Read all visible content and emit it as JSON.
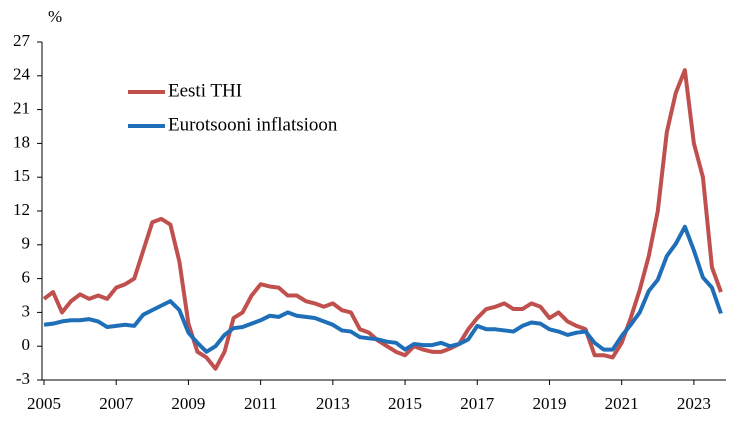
{
  "chart_data": {
    "type": "line",
    "y_unit": "%",
    "x": [
      2005,
      2005.25,
      2005.5,
      2005.75,
      2006,
      2006.25,
      2006.5,
      2006.75,
      2007,
      2007.25,
      2007.5,
      2007.75,
      2008,
      2008.25,
      2008.5,
      2008.75,
      2009,
      2009.25,
      2009.5,
      2009.75,
      2010,
      2010.25,
      2010.5,
      2010.75,
      2011,
      2011.25,
      2011.5,
      2011.75,
      2012,
      2012.25,
      2012.5,
      2012.75,
      2013,
      2013.25,
      2013.5,
      2013.75,
      2014,
      2014.25,
      2014.5,
      2014.75,
      2015,
      2015.25,
      2015.5,
      2015.75,
      2016,
      2016.25,
      2016.5,
      2016.75,
      2017,
      2017.25,
      2017.5,
      2017.75,
      2018,
      2018.25,
      2018.5,
      2018.75,
      2019,
      2019.25,
      2019.5,
      2019.75,
      2020,
      2020.25,
      2020.5,
      2020.75,
      2021,
      2021.25,
      2021.5,
      2021.75,
      2022,
      2022.25,
      2022.5,
      2022.75,
      2023,
      2023.25,
      2023.5,
      2023.75
    ],
    "series": [
      {
        "name": "Eesti THI",
        "color": "#c0504d",
        "values": [
          4.2,
          4.8,
          3.0,
          4.0,
          4.6,
          4.2,
          4.5,
          4.2,
          5.2,
          5.5,
          6.0,
          8.5,
          11.0,
          11.3,
          10.8,
          7.5,
          2.0,
          -0.5,
          -1.0,
          -2.0,
          -0.5,
          2.5,
          3.0,
          4.5,
          5.5,
          5.3,
          5.2,
          4.5,
          4.5,
          4.0,
          3.8,
          3.5,
          3.8,
          3.2,
          3.0,
          1.5,
          1.2,
          0.5,
          0,
          -0.5,
          -0.8,
          0,
          -0.3,
          -0.5,
          -0.5,
          -0.2,
          0.2,
          1.5,
          2.5,
          3.3,
          3.5,
          3.8,
          3.3,
          3.3,
          3.8,
          3.5,
          2.5,
          3.0,
          2.2,
          1.8,
          1.5,
          -0.8,
          -0.8,
          -1.0,
          0.3,
          2.5,
          5.0,
          8.0,
          12.0,
          19.0,
          22.5,
          24.5,
          18.0,
          15.0,
          7.0,
          4.8
        ]
      },
      {
        "name": "Eurotsooni inflatsioon",
        "color": "#1f6fb8",
        "values": [
          1.9,
          2.0,
          2.2,
          2.3,
          2.3,
          2.4,
          2.2,
          1.7,
          1.8,
          1.9,
          1.8,
          2.8,
          3.2,
          3.6,
          4.0,
          3.2,
          1.2,
          0.3,
          -0.5,
          0,
          1.0,
          1.6,
          1.7,
          2.0,
          2.3,
          2.7,
          2.6,
          3.0,
          2.7,
          2.6,
          2.5,
          2.2,
          1.9,
          1.4,
          1.3,
          0.8,
          0.7,
          0.6,
          0.4,
          0.3,
          -0.3,
          0.2,
          0.1,
          0.1,
          0.3,
          0,
          0.2,
          0.6,
          1.8,
          1.5,
          1.5,
          1.4,
          1.3,
          1.8,
          2.1,
          2.0,
          1.5,
          1.3,
          1.0,
          1.2,
          1.3,
          0.3,
          -0.3,
          -0.3,
          0.9,
          1.9,
          3.0,
          4.9,
          5.9,
          8.0,
          9.1,
          10.6,
          8.5,
          6.1,
          5.2,
          2.9
        ]
      }
    ],
    "xlim": [
      2005,
      2024
    ],
    "xticks": [
      2005,
      2007,
      2009,
      2011,
      2013,
      2015,
      2017,
      2019,
      2021,
      2023
    ],
    "ylim": [
      -3,
      27
    ],
    "yticks": [
      -3,
      0,
      3,
      6,
      9,
      12,
      15,
      18,
      21,
      24,
      27
    ],
    "legend": "upper left"
  }
}
